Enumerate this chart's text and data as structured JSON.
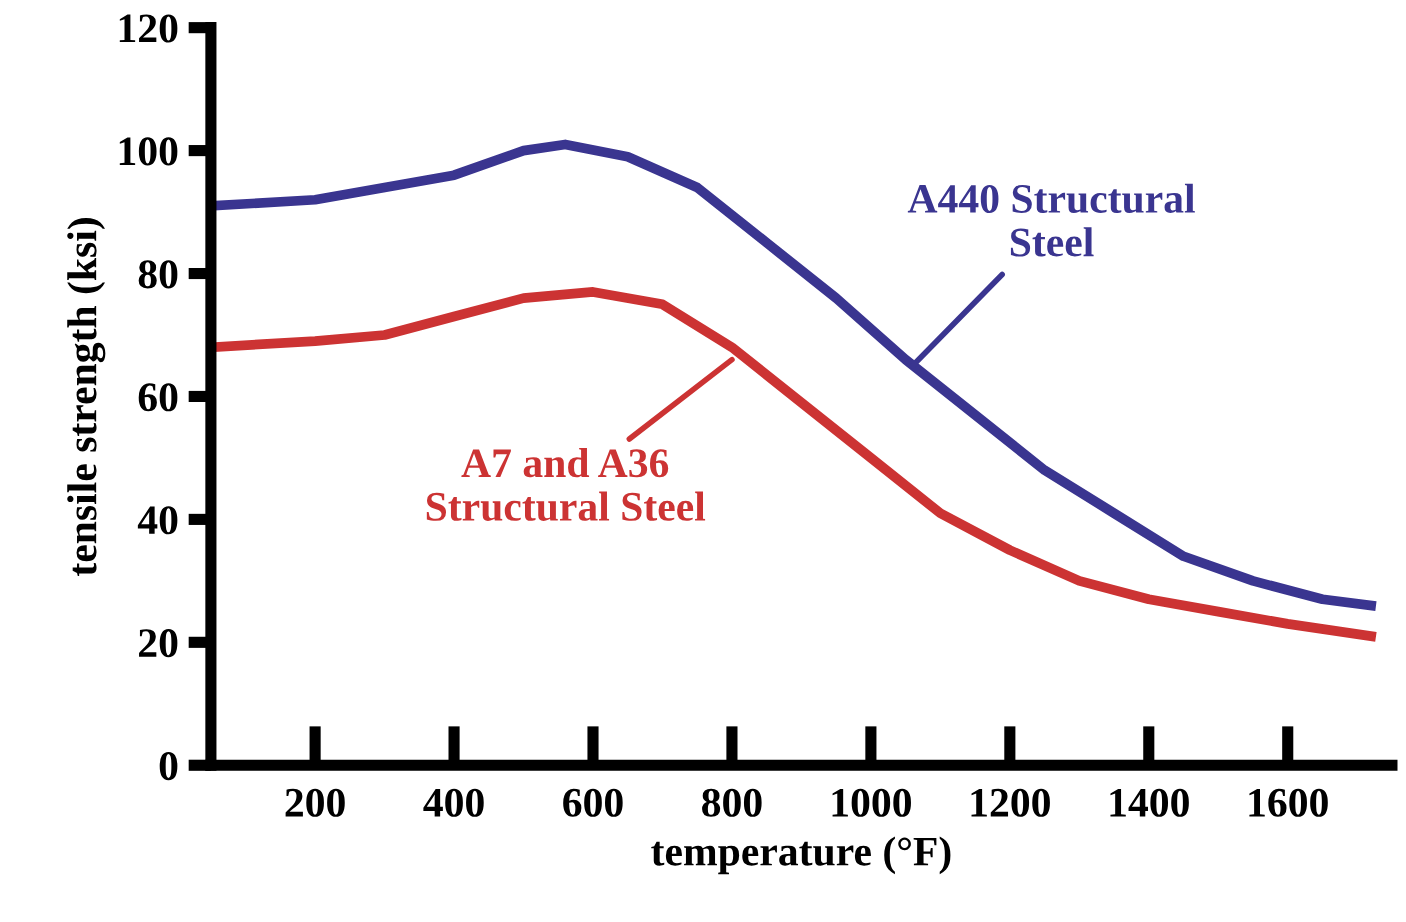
{
  "chart_data": {
    "type": "line",
    "xlabel": "temperature (°F)",
    "ylabel": "tensile strength (ksi)",
    "xlim": [
      50,
      1750
    ],
    "ylim": [
      0,
      120
    ],
    "xticks": [
      200,
      400,
      600,
      800,
      1000,
      1200,
      1400,
      1600
    ],
    "yticks": [
      0,
      20,
      40,
      60,
      80,
      100,
      120
    ],
    "grid": false,
    "legend": false,
    "marker": "none",
    "line_style": "solid",
    "series": [
      {
        "color": "#3a3590",
        "x": [
          50,
          200,
          300,
          400,
          500,
          560,
          650,
          750,
          850,
          950,
          1050,
          1150,
          1250,
          1350,
          1450,
          1550,
          1650,
          1720
        ],
        "values": [
          91,
          92,
          94,
          96,
          100,
          101,
          99,
          94,
          85,
          76,
          66,
          57,
          48,
          41,
          34,
          30,
          27,
          26
        ]
      },
      {
        "color": "#cc3333",
        "x": [
          50,
          200,
          300,
          400,
          500,
          600,
          700,
          800,
          900,
          1000,
          1100,
          1200,
          1300,
          1400,
          1500,
          1600,
          1720
        ],
        "values": [
          68,
          69,
          70,
          73,
          76,
          77,
          75,
          68,
          59,
          50,
          41,
          35,
          30,
          27,
          25,
          23,
          21
        ]
      }
    ],
    "annotations": [
      {
        "text": "A440 Structural\nSteel",
        "x": 1060,
        "y": 65
      },
      {
        "text": "A7 and A36\nStructural Steel",
        "x": 800,
        "y": 66
      }
    ]
  }
}
